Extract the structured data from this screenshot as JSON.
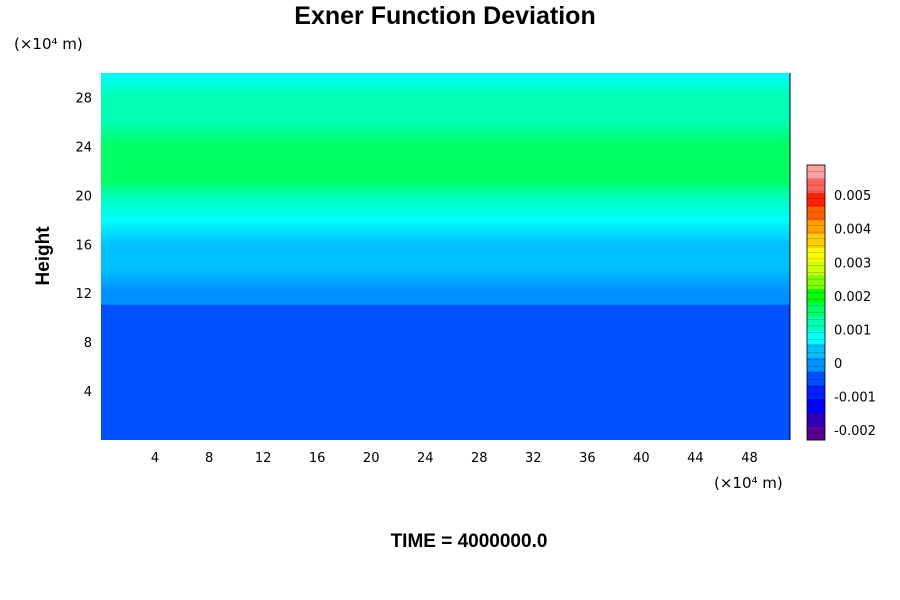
{
  "chart_data": {
    "type": "heatmap",
    "title": "Exner Function Deviation",
    "ylabel": "Height",
    "x_unit_label": "(×10⁴ m)",
    "y_unit_label": "(×10⁴ m)",
    "footer": "TIME = 4000000.0",
    "xlim": [
      0,
      51
    ],
    "ylim": [
      0,
      30
    ],
    "x_ticks": [
      4,
      8,
      12,
      16,
      20,
      24,
      28,
      32,
      36,
      40,
      44,
      48
    ],
    "y_ticks": [
      4,
      8,
      12,
      16,
      20,
      24,
      28
    ],
    "field_profile": {
      "height": [
        0,
        10,
        10.1,
        11,
        11.1,
        12,
        12.1,
        14,
        16,
        18,
        20,
        21.3,
        22,
        24,
        26,
        28,
        30
      ],
      "value": [
        -0.0005,
        -0.0005,
        -0.00035,
        -0.00035,
        -0.0002,
        -0.0002,
        0.0,
        0.0002,
        0.0005,
        0.0008,
        0.0013,
        0.0017,
        0.0016,
        0.0014,
        0.0012,
        0.001,
        0.0009
      ]
    },
    "colorbar": {
      "min": -0.0023,
      "max": 0.0059,
      "step": 0.0002,
      "tick_labels": [
        "0.005",
        "0.004",
        "0.003",
        "0.002",
        "0.001",
        "0",
        "-0.001",
        "-0.002"
      ],
      "tick_values": [
        0.005,
        0.004,
        0.003,
        0.002,
        0.001,
        0,
        -0.001,
        -0.002
      ],
      "colors": [
        "#5a0090",
        "#3000b8",
        "#0000ff",
        "#0020ff",
        "#0050ff",
        "#0090ff",
        "#00c0ff",
        "#00ffff",
        "#00ffb0",
        "#00ff60",
        "#00ff00",
        "#80ff00",
        "#ccff00",
        "#ffff00",
        "#ffd000",
        "#ffa000",
        "#ff6000",
        "#ff2000",
        "#ff6060",
        "#ffa0a0"
      ]
    }
  }
}
